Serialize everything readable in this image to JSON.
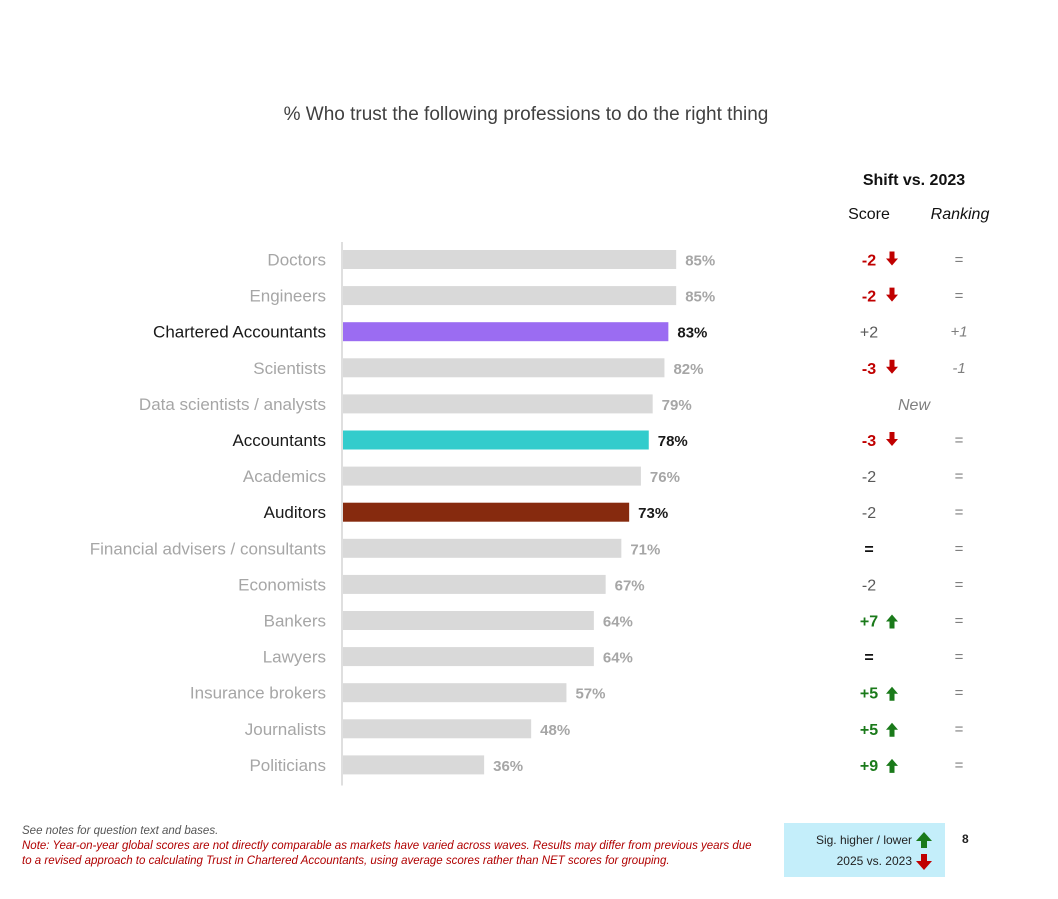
{
  "header": {
    "title": "% Who trust the following professions to do the right thing",
    "shift_label": "Shift vs. 2023",
    "score_label": "Score",
    "ranking_label": "Ranking"
  },
  "colors": {
    "default_bar": "#d9d9d9",
    "chartered_accountants": "#9b6cf2",
    "accountants": "#33cccc",
    "auditors": "#862a0e",
    "down": "#c00000",
    "up": "#1a7a1a",
    "legend_bg": "#c4eefa"
  },
  "chart_data": {
    "type": "bar",
    "orientation": "horizontal",
    "title": "% Who trust the following professions to do the right thing",
    "xlim": [
      0,
      100
    ],
    "categories": [
      "Doctors",
      "Engineers",
      "Chartered Accountants",
      "Scientists",
      "Data scientists / analysts",
      "Accountants",
      "Academics",
      "Auditors",
      "Financial advisers / consultants",
      "Economists",
      "Bankers",
      "Lawyers",
      "Insurance brokers",
      "Journalists",
      "Politicians"
    ],
    "values": [
      85,
      85,
      83,
      82,
      79,
      78,
      76,
      73,
      71,
      67,
      64,
      64,
      57,
      48,
      36
    ],
    "value_labels": [
      "85%",
      "85%",
      "83%",
      "82%",
      "79%",
      "78%",
      "76%",
      "73%",
      "71%",
      "67%",
      "64%",
      "64%",
      "57%",
      "48%",
      "36%"
    ],
    "highlight": [
      "",
      "",
      "chartered_accountants",
      "",
      "",
      "accountants",
      "",
      "auditors",
      "",
      "",
      "",
      "",
      "",
      "",
      ""
    ],
    "shift_score": [
      "-2",
      "-2",
      "+2",
      "-3",
      "",
      "-3",
      "-2",
      "-2",
      "=",
      "-2",
      "+7",
      "=",
      "+5",
      "+5",
      "+9"
    ],
    "shift_sig": [
      "down",
      "down",
      "",
      "down",
      "",
      "down",
      "",
      "",
      "",
      "",
      "up",
      "",
      "up",
      "up",
      "up"
    ],
    "shift_rank": [
      "=",
      "=",
      "+1",
      "-1",
      "",
      "=",
      "=",
      "=",
      "=",
      "=",
      "=",
      "=",
      "=",
      "=",
      "="
    ],
    "new_entry": [
      "",
      "",
      "",
      "",
      "New",
      "",
      "",
      "",
      "",
      "",
      "",
      "",
      "",
      "",
      ""
    ]
  },
  "footer": {
    "see_notes": "See notes for question text and bases.",
    "note": "Note: Year-on-year global scores are not directly comparable as markets have varied across waves. Results may differ from previous years due to a revised approach to calculating Trust in Chartered Accountants, using average scores rather than NET scores for grouping.",
    "legend_line1": "Sig. higher / lower",
    "legend_line2": "2025 vs. 2023",
    "page_number": "8"
  }
}
